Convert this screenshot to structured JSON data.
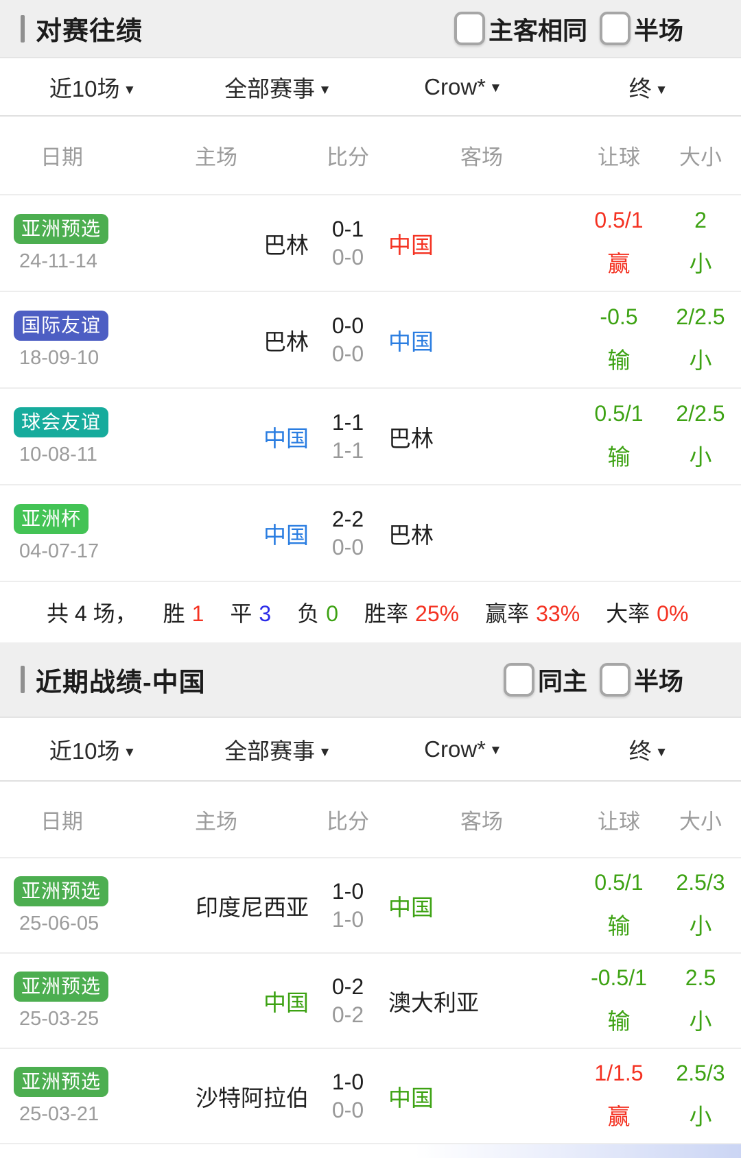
{
  "colors": {
    "red": "#f43222",
    "green": "#3da213",
    "blue": "#2a7de1",
    "deep_blue": "#2b2be8",
    "dark": "#1f1f1f",
    "badge_green": "#4cae50",
    "badge_bright_green": "#43c355",
    "badge_indigo": "#4d5ec3",
    "badge_teal": "#16ab9c"
  },
  "icons": {
    "caret_down": "▼"
  },
  "h2h": {
    "title": "对赛往绩",
    "checkboxes": [
      {
        "label": "主客相同",
        "checked": false
      },
      {
        "label": "半场",
        "checked": false
      }
    ],
    "filters": {
      "range": "近10场",
      "competition": "全部赛事",
      "bookmaker": "Crow*",
      "odds_stage": "终"
    },
    "headers": {
      "date": "日期",
      "home": "主场",
      "score": "比分",
      "away": "客场",
      "handicap": "让球",
      "ou": "大小"
    },
    "rows": [
      {
        "badge": "亚洲预选",
        "badge_color": "badge_green",
        "date": "24-11-14",
        "home": "巴林",
        "home_color": "dark",
        "ft": "0-1",
        "ht": "0-0",
        "away": "中国",
        "away_color": "red",
        "handicap": "0.5/1",
        "handicap_result": "赢",
        "handicap_color": "red",
        "ou": "2",
        "ou_result": "小",
        "ou_color": "green"
      },
      {
        "badge": "国际友谊",
        "badge_color": "badge_indigo",
        "date": "18-09-10",
        "home": "巴林",
        "home_color": "dark",
        "ft": "0-0",
        "ht": "0-0",
        "away": "中国",
        "away_color": "blue",
        "handicap": "-0.5",
        "handicap_result": "输",
        "handicap_color": "green",
        "ou": "2/2.5",
        "ou_result": "小",
        "ou_color": "green"
      },
      {
        "badge": "球会友谊",
        "badge_color": "badge_teal",
        "date": "10-08-11",
        "home": "中国",
        "home_color": "blue",
        "ft": "1-1",
        "ht": "1-1",
        "away": "巴林",
        "away_color": "dark",
        "handicap": "0.5/1",
        "handicap_result": "输",
        "handicap_color": "green",
        "ou": "2/2.5",
        "ou_result": "小",
        "ou_color": "green"
      },
      {
        "badge": "亚洲杯",
        "badge_color": "badge_bright_green",
        "date": "04-07-17",
        "home": "中国",
        "home_color": "blue",
        "ft": "2-2",
        "ht": "0-0",
        "away": "巴林",
        "away_color": "dark",
        "handicap": "",
        "handicap_result": "",
        "handicap_color": "dark",
        "ou": "",
        "ou_result": "",
        "ou_color": "dark"
      }
    ],
    "summary": {
      "total": "共 4 场，",
      "win_label": "胜",
      "win": "1",
      "win_color": "red",
      "draw_label": "平",
      "draw": "3",
      "draw_color": "deep_blue",
      "loss_label": "负",
      "loss": "0",
      "loss_color": "green",
      "win_rate_label": "胜率",
      "win_rate": "25%",
      "win_rate_color": "red",
      "handicap_rate_label": "赢率",
      "handicap_rate": "33%",
      "handicap_rate_color": "red",
      "over_rate_label": "大率",
      "over_rate": "0%",
      "over_rate_color": "red"
    }
  },
  "recent": {
    "title": "近期战绩-中国",
    "checkboxes": [
      {
        "label": "同主",
        "checked": false
      },
      {
        "label": "半场",
        "checked": false
      }
    ],
    "filters": {
      "range": "近10场",
      "competition": "全部赛事",
      "bookmaker": "Crow*",
      "odds_stage": "终"
    },
    "headers": {
      "date": "日期",
      "home": "主场",
      "score": "比分",
      "away": "客场",
      "handicap": "让球",
      "ou": "大小"
    },
    "rows": [
      {
        "badge": "亚洲预选",
        "badge_color": "badge_green",
        "date": "25-06-05",
        "home": "印度尼西亚",
        "home_color": "dark",
        "ft": "1-0",
        "ht": "1-0",
        "away": "中国",
        "away_color": "green",
        "handicap": "0.5/1",
        "handicap_result": "输",
        "handicap_color": "green",
        "ou": "2.5/3",
        "ou_result": "小",
        "ou_color": "green"
      },
      {
        "badge": "亚洲预选",
        "badge_color": "badge_green",
        "date": "25-03-25",
        "home": "中国",
        "home_color": "green",
        "ft": "0-2",
        "ht": "0-2",
        "away": "澳大利亚",
        "away_color": "dark",
        "handicap": "-0.5/1",
        "handicap_result": "输",
        "handicap_color": "green",
        "ou": "2.5",
        "ou_result": "小",
        "ou_color": "green"
      },
      {
        "badge": "亚洲预选",
        "badge_color": "badge_green",
        "date": "25-03-21",
        "home": "沙特阿拉伯",
        "home_color": "dark",
        "ft": "1-0",
        "ht": "0-0",
        "away": "中国",
        "away_color": "green",
        "handicap": "1/1.5",
        "handicap_result": "赢",
        "handicap_color": "red",
        "ou": "2.5/3",
        "ou_result": "小",
        "ou_color": "green"
      }
    ]
  }
}
